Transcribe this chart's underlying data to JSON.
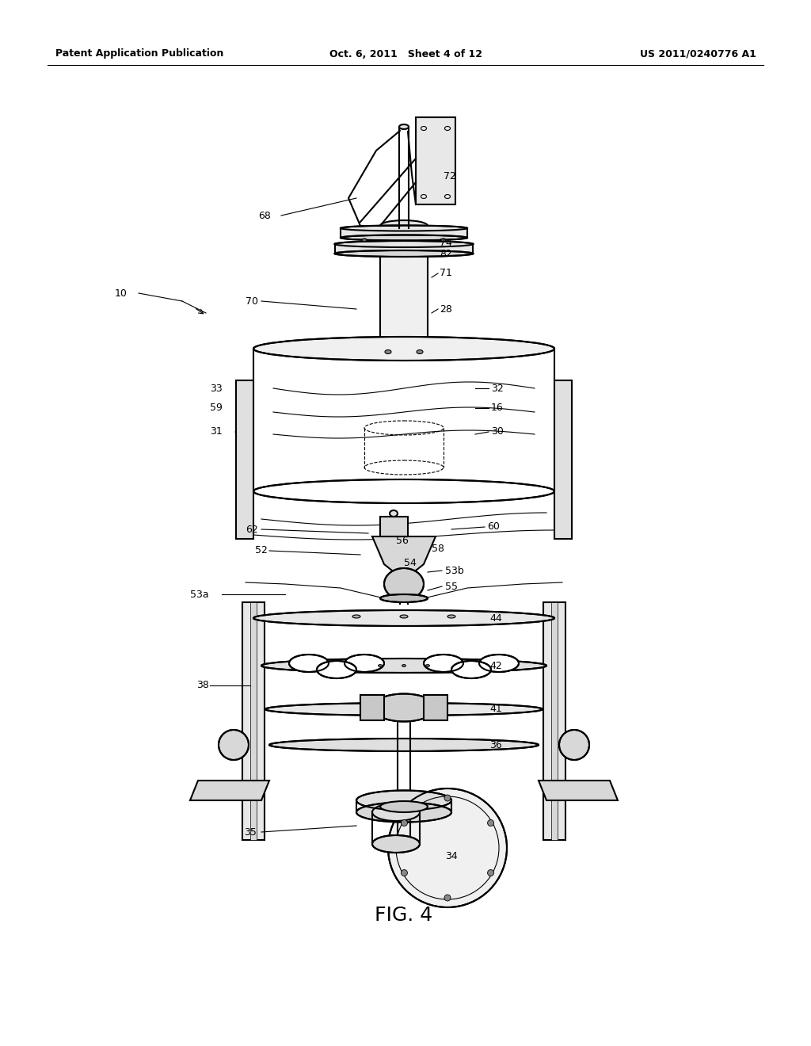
{
  "header_left": "Patent Application Publication",
  "header_center": "Oct. 6, 2011   Sheet 4 of 12",
  "header_right": "US 2011/0240776 A1",
  "figure_label": "FIG. 4",
  "bg_color": "#ffffff",
  "line_color": "#000000",
  "lw_main": 1.5,
  "lw_thin": 0.8,
  "font_size_header": 9,
  "font_size_label": 9,
  "font_size_fig": 18
}
